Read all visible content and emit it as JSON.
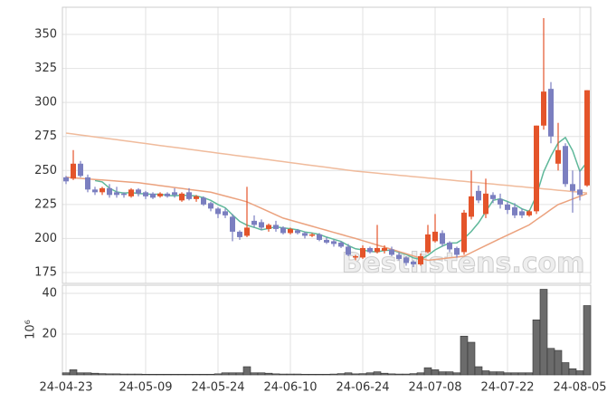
{
  "chart_data": {
    "type": "candlestick",
    "categories": [
      "24-04-23",
      null,
      null,
      null,
      null,
      null,
      null,
      null,
      null,
      null,
      null,
      "24-05-09",
      null,
      null,
      null,
      null,
      null,
      null,
      null,
      null,
      null,
      "24-05-24",
      null,
      null,
      null,
      null,
      null,
      null,
      null,
      null,
      null,
      "24-06-10",
      null,
      null,
      null,
      null,
      null,
      null,
      null,
      null,
      null,
      "24-06-24",
      null,
      null,
      null,
      null,
      null,
      null,
      null,
      null,
      null,
      "24-07-08",
      null,
      null,
      null,
      null,
      null,
      null,
      null,
      null,
      null,
      "24-07-22",
      null,
      null,
      null,
      null,
      null,
      null,
      null,
      null,
      null,
      "24-08-05",
      null
    ],
    "open": [
      245,
      244,
      255,
      245,
      236,
      234,
      237,
      234,
      233,
      231,
      236,
      234,
      233,
      231,
      233,
      234,
      228,
      234,
      229,
      230,
      226,
      222,
      220,
      216,
      205,
      202,
      213,
      212,
      207,
      210,
      208,
      204,
      206,
      204,
      202,
      203,
      199,
      198,
      197,
      194,
      186,
      186,
      193,
      190,
      191,
      192,
      188,
      186,
      183,
      181,
      190,
      198,
      204,
      197,
      193,
      190,
      216,
      235,
      218,
      232,
      229,
      225,
      223,
      220,
      217,
      220,
      283,
      310,
      255,
      268,
      240,
      236,
      239
    ],
    "high": [
      246,
      265,
      257,
      247,
      238,
      238,
      240,
      238,
      234,
      237,
      237,
      235,
      234,
      234,
      234,
      237,
      234,
      237,
      232,
      231,
      227,
      223,
      222,
      218,
      206,
      238,
      217,
      214,
      211,
      213,
      209,
      208,
      207,
      205,
      204,
      204,
      201,
      199,
      198,
      196,
      188,
      195,
      194,
      210,
      195,
      194,
      190,
      187,
      184,
      189,
      210,
      218,
      206,
      198,
      194,
      221,
      250,
      239,
      244,
      234,
      233,
      227,
      226,
      222,
      221,
      283,
      362,
      315,
      285,
      270,
      250,
      250,
      309
    ],
    "low": [
      240,
      243,
      245,
      234,
      232,
      232,
      230,
      230,
      230,
      230,
      231,
      229,
      229,
      230,
      230,
      230,
      227,
      228,
      227,
      224,
      220,
      215,
      215,
      198,
      199,
      201,
      208,
      206,
      205,
      205,
      203,
      203,
      203,
      200,
      201,
      198,
      196,
      194,
      193,
      187,
      184,
      185,
      189,
      189,
      189,
      187,
      184,
      180,
      179,
      180,
      189,
      197,
      194,
      190,
      186,
      188,
      214,
      226,
      215,
      226,
      222,
      218,
      215,
      215,
      216,
      218,
      280,
      270,
      250,
      238,
      219,
      228,
      238
    ],
    "close": [
      242,
      255,
      246,
      236,
      234,
      237,
      232,
      232,
      232,
      236,
      233,
      231,
      230,
      233,
      231,
      232,
      233,
      229,
      231,
      225,
      222,
      218,
      217,
      205,
      201,
      208,
      210,
      208,
      210,
      207,
      204,
      207,
      204,
      202,
      203,
      199,
      197,
      196,
      194,
      188,
      187,
      193,
      190,
      193,
      193,
      188,
      185,
      182,
      181,
      187,
      203,
      205,
      196,
      192,
      188,
      219,
      231,
      228,
      233,
      229,
      225,
      221,
      217,
      217,
      220,
      283,
      308,
      275,
      265,
      240,
      235,
      232,
      309
    ],
    "up_color": "#e4542a",
    "down_color": "#7b7fc0",
    "series": [
      {
        "color": "#5fb89a",
        "values": [
          null,
          null,
          null,
          null,
          242.6,
          241.6,
          237,
          234.2,
          233.4,
          233.8,
          233,
          232.8,
          232.4,
          232.6,
          231.6,
          231.4,
          231.8,
          231.6,
          231.2,
          230,
          228,
          225,
          222.6,
          217.4,
          212.6,
          209.8,
          208.2,
          206.4,
          207.4,
          208.6,
          207.8,
          207.2,
          206.4,
          204.8,
          204,
          203,
          201,
          199.4,
          197.8,
          194.8,
          192.4,
          191.6,
          190.4,
          190.2,
          191.2,
          191.4,
          189.8,
          188.2,
          185.8,
          184.6,
          187.6,
          191.6,
          194.4,
          196.6,
          196.8,
          200,
          205.2,
          211.6,
          219.8,
          228,
          229.2,
          227.2,
          225,
          221.8,
          220,
          231.6,
          249,
          260.6,
          270.2,
          274.2,
          264.6,
          249.4,
          256.2
        ]
      },
      {
        "color": "#eba27e",
        "values": [
          245,
          244.6,
          244.2,
          243.8,
          243.4,
          243,
          242.6,
          242.2,
          241.8,
          241.4,
          241,
          240.3,
          239.6,
          238.9,
          238.2,
          237.5,
          236.8,
          236.1,
          235.4,
          234.7,
          234,
          232.6,
          231.2,
          229.8,
          228.4,
          227,
          224.6,
          222.2,
          219.8,
          217.4,
          215,
          213.5,
          212,
          210.5,
          209,
          207.5,
          206,
          204.5,
          203,
          201.5,
          200,
          198.4,
          196.8,
          195.2,
          193.6,
          192,
          190.4,
          188.8,
          187.2,
          185.6,
          184,
          184.6,
          185.2,
          185.8,
          186.4,
          187,
          189.6,
          192.2,
          194.8,
          197.4,
          200,
          202.5,
          205,
          207.5,
          210,
          213.8,
          217.5,
          221.3,
          225,
          227,
          229,
          231,
          233
        ]
      },
      {
        "color": "#f0bb9c",
        "values": [
          277.5,
          276.8,
          276.1,
          275.4,
          274.7,
          274,
          273.3,
          272.6,
          271.9,
          271.2,
          270.5,
          269.8,
          269.1,
          268.4,
          267.7,
          267,
          266.3,
          265.6,
          264.9,
          264.2,
          263.5,
          262.8,
          262.1,
          261.4,
          260.7,
          260,
          259.3,
          258.6,
          257.9,
          257.2,
          256.5,
          255.8,
          255.1,
          254.4,
          253.7,
          253,
          252.3,
          251.6,
          250.9,
          250.2,
          249.5,
          249,
          248.5,
          248,
          247.5,
          247,
          246.5,
          246,
          245.5,
          245,
          244.5,
          244,
          243.5,
          243,
          242.5,
          242,
          241.5,
          241,
          240.5,
          240,
          239.5,
          239,
          238.5,
          238,
          237.5,
          237,
          236.5,
          236,
          235.5,
          235,
          234.5,
          234,
          233.5
        ]
      }
    ],
    "ylim": [
      167,
      370
    ],
    "yticks": [
      175,
      200,
      225,
      250,
      275,
      300,
      325,
      350
    ],
    "grid": true,
    "annotation": "Bestlistens.com",
    "volume": {
      "type": "bar",
      "color": "#6b6b6b",
      "ylabel": "10⁶",
      "ylim": [
        0,
        44
      ],
      "yticks": [
        20,
        40
      ],
      "values": [
        1,
        2.5,
        1,
        1,
        0.8,
        0.6,
        0.5,
        0.5,
        0.4,
        0.4,
        0.4,
        0.3,
        0.3,
        0.3,
        0.3,
        0.3,
        0.3,
        0.3,
        0.3,
        0.3,
        0.3,
        0.5,
        1,
        1,
        1,
        4,
        1,
        1,
        0.8,
        0.5,
        0.4,
        0.4,
        0.4,
        0.3,
        0.3,
        0.3,
        0.3,
        0.4,
        0.6,
        1,
        0.5,
        0.6,
        1,
        1.5,
        0.8,
        0.5,
        0.4,
        0.4,
        0.6,
        1,
        3.5,
        2.5,
        1.5,
        1.5,
        1,
        19,
        16,
        4,
        2,
        1.5,
        1.5,
        1,
        1,
        1,
        1,
        27,
        42,
        13,
        12,
        6,
        3,
        2,
        34
      ]
    }
  }
}
